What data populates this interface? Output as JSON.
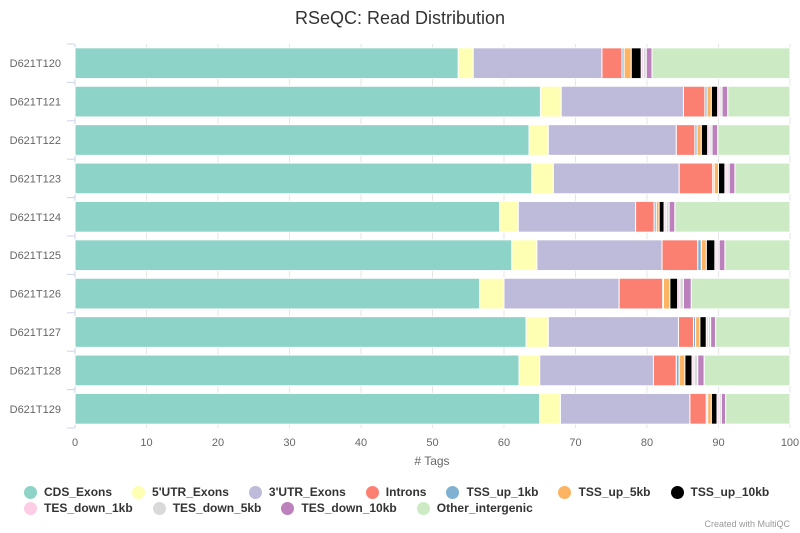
{
  "chart_data": {
    "type": "bar",
    "orientation": "horizontal",
    "stacked": true,
    "title": "RSeQC: Read Distribution",
    "xlabel": "# Tags",
    "ylabel": "",
    "xlim": [
      0,
      100
    ],
    "xticks": [
      "0",
      "10",
      "20",
      "30",
      "40",
      "50",
      "60",
      "70",
      "80",
      "90",
      "100"
    ],
    "categories": [
      "D621T120",
      "D621T121",
      "D621T122",
      "D621T123",
      "D621T124",
      "D621T125",
      "D621T126",
      "D621T127",
      "D621T128",
      "D621T129"
    ],
    "series": [
      {
        "name": "CDS_Exons",
        "color": "#8dd3c7",
        "values": [
          53.6,
          65.1,
          63.5,
          63.9,
          59.4,
          61.1,
          56.6,
          63.1,
          62.1,
          65.0
        ]
      },
      {
        "name": "5'UTR_Exons",
        "color": "#ffffb3",
        "values": [
          2.1,
          2.9,
          2.7,
          3.0,
          2.6,
          3.5,
          3.4,
          3.1,
          2.9,
          2.9
        ]
      },
      {
        "name": "3'UTR_Exons",
        "color": "#bebada",
        "values": [
          18.0,
          17.1,
          17.9,
          17.6,
          16.4,
          17.5,
          16.1,
          18.2,
          15.9,
          18.1
        ]
      },
      {
        "name": "Introns",
        "color": "#fb8072",
        "values": [
          2.8,
          3.0,
          2.6,
          4.7,
          2.6,
          5.0,
          6.1,
          2.1,
          3.2,
          2.3
        ]
      },
      {
        "name": "TSS_up_1kb",
        "color": "#80b1d3",
        "values": [
          0.3,
          0.3,
          0.3,
          0.2,
          0.3,
          0.5,
          0.1,
          0.3,
          0.4,
          0.2
        ]
      },
      {
        "name": "TSS_up_5kb",
        "color": "#fdb462",
        "values": [
          1.0,
          0.6,
          0.6,
          0.6,
          0.4,
          0.7,
          0.9,
          0.6,
          0.8,
          0.5
        ]
      },
      {
        "name": "TSS_up_10kb",
        "color": "#000000",
        "values": [
          1.4,
          0.9,
          0.9,
          0.9,
          0.7,
          1.2,
          1.1,
          0.9,
          1.0,
          0.8
        ]
      },
      {
        "name": "TES_down_1kb",
        "color": "#fccde5",
        "values": [
          0.3,
          0.3,
          0.3,
          0.3,
          0.3,
          0.3,
          0.3,
          0.3,
          0.3,
          0.3
        ]
      },
      {
        "name": "TES_down_5kb",
        "color": "#d9d9d9",
        "values": [
          0.4,
          0.3,
          0.3,
          0.3,
          0.4,
          0.3,
          0.5,
          0.3,
          0.5,
          0.3
        ]
      },
      {
        "name": "TES_down_10kb",
        "color": "#bc80bd",
        "values": [
          0.8,
          0.8,
          0.8,
          0.8,
          0.8,
          0.8,
          1.1,
          0.7,
          0.9,
          0.6
        ]
      },
      {
        "name": "Other_intergenic",
        "color": "#ccebc5",
        "values": [
          19.3,
          8.7,
          10.1,
          7.7,
          16.1,
          9.1,
          13.8,
          10.4,
          12.0,
          9.0
        ]
      }
    ],
    "legend_position": "bottom"
  },
  "credit": "Created with MultiQC"
}
